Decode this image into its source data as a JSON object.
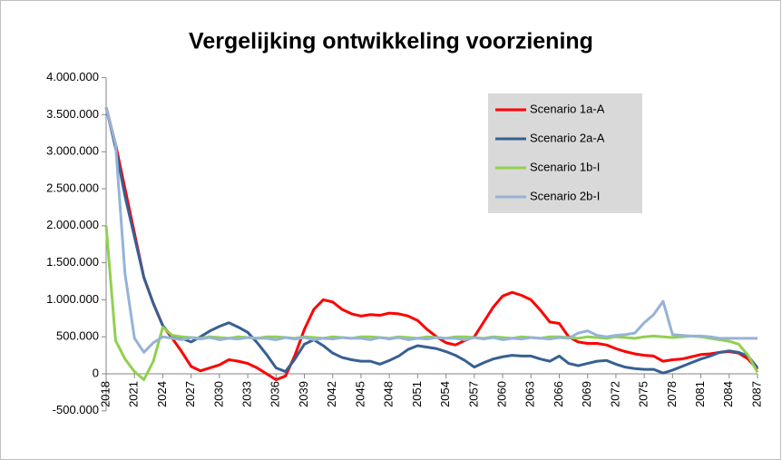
{
  "chart_data": {
    "type": "line",
    "title": "Vergelijking ontwikkeling voorziening",
    "categories": [
      "2018",
      null,
      null,
      "2021",
      null,
      null,
      "2024",
      null,
      null,
      "2027",
      null,
      null,
      "2030",
      null,
      null,
      "2033",
      null,
      null,
      "2036",
      null,
      null,
      "2039",
      null,
      null,
      "2042",
      null,
      null,
      "2045",
      null,
      null,
      "2048",
      null,
      null,
      "2051",
      null,
      null,
      "2054",
      null,
      null,
      "2057",
      null,
      null,
      "2060",
      null,
      null,
      "2063",
      null,
      null,
      "2066",
      null,
      null,
      "2069",
      null,
      null,
      "2072",
      null,
      null,
      "2075",
      null,
      null,
      "2078",
      null,
      null,
      "2081",
      null,
      null,
      "2084",
      null,
      null,
      "2087"
    ],
    "series": [
      {
        "name": "Scenario 1a-A",
        "color": "#ff0000",
        "values": [
          3600000,
          3100000,
          2500000,
          1900000,
          1300000,
          950000,
          650000,
          480000,
          300000,
          100000,
          40000,
          80000,
          120000,
          190000,
          170000,
          140000,
          80000,
          0,
          -80000,
          -30000,
          250000,
          600000,
          870000,
          1000000,
          970000,
          870000,
          810000,
          780000,
          800000,
          790000,
          820000,
          810000,
          780000,
          720000,
          600000,
          500000,
          420000,
          390000,
          450000,
          500000,
          700000,
          900000,
          1050000,
          1100000,
          1060000,
          1000000,
          860000,
          700000,
          680000,
          500000,
          430000,
          410000,
          410000,
          390000,
          340000,
          300000,
          270000,
          250000,
          240000,
          170000,
          190000,
          200000,
          230000,
          260000,
          270000,
          290000,
          300000,
          280000,
          200000,
          60000
        ]
      },
      {
        "name": "Scenario 2a-A",
        "color": "#376092",
        "values": [
          3600000,
          3050000,
          2400000,
          1850000,
          1300000,
          950000,
          650000,
          500000,
          480000,
          430000,
          500000,
          580000,
          640000,
          690000,
          630000,
          560000,
          420000,
          260000,
          80000,
          30000,
          200000,
          400000,
          460000,
          380000,
          280000,
          220000,
          190000,
          170000,
          170000,
          130000,
          180000,
          240000,
          330000,
          380000,
          360000,
          340000,
          300000,
          250000,
          180000,
          90000,
          150000,
          200000,
          230000,
          250000,
          240000,
          240000,
          200000,
          170000,
          240000,
          140000,
          110000,
          140000,
          170000,
          180000,
          130000,
          90000,
          70000,
          60000,
          60000,
          10000,
          50000,
          100000,
          150000,
          200000,
          240000,
          290000,
          310000,
          290000,
          240000,
          80000
        ]
      },
      {
        "name": "Scenario 1b-I",
        "color": "#92d050",
        "values": [
          2000000,
          450000,
          200000,
          30000,
          -80000,
          170000,
          630000,
          520000,
          500000,
          490000,
          480000,
          500000,
          490000,
          480000,
          500000,
          490000,
          480000,
          500000,
          500000,
          490000,
          480000,
          500000,
          490000,
          480000,
          500000,
          490000,
          480000,
          500000,
          500000,
          490000,
          480000,
          500000,
          490000,
          480000,
          500000,
          490000,
          480000,
          500000,
          500000,
          490000,
          480000,
          500000,
          490000,
          480000,
          500000,
          490000,
          480000,
          500000,
          500000,
          490000,
          480000,
          500000,
          490000,
          480000,
          500000,
          490000,
          480000,
          500000,
          510000,
          500000,
          490000,
          500000,
          510000,
          500000,
          480000,
          460000,
          440000,
          400000,
          250000,
          20000
        ]
      },
      {
        "name": "Scenario 2b-I",
        "color": "#95b3d7",
        "values": [
          3600000,
          3100000,
          1350000,
          480000,
          290000,
          420000,
          500000,
          480000,
          460000,
          490000,
          470000,
          490000,
          460000,
          480000,
          470000,
          490000,
          480000,
          480000,
          460000,
          490000,
          470000,
          490000,
          460000,
          480000,
          470000,
          490000,
          480000,
          480000,
          460000,
          490000,
          470000,
          490000,
          460000,
          480000,
          470000,
          490000,
          480000,
          480000,
          460000,
          490000,
          470000,
          490000,
          460000,
          480000,
          470000,
          490000,
          480000,
          470000,
          490000,
          480000,
          550000,
          580000,
          520000,
          500000,
          520000,
          530000,
          550000,
          690000,
          800000,
          980000,
          530000,
          520000,
          510000,
          510000,
          500000,
          480000,
          480000,
          480000,
          480000,
          480000
        ]
      }
    ],
    "ylim": [
      -500000,
      4000000
    ],
    "yticks": [
      {
        "value": -500000,
        "label": "-500.000"
      },
      0,
      {
        "value": 500000,
        "label": "500.000"
      },
      {
        "value": 1000000,
        "label": "1.000.000"
      },
      {
        "value": 1500000,
        "label": "1.500.000"
      },
      {
        "value": 2000000,
        "label": "2.000.000"
      },
      {
        "value": 2500000,
        "label": "2.500.000"
      },
      {
        "value": 3000000,
        "label": "3.000.000"
      },
      {
        "value": 3500000,
        "label": "3.500.000"
      },
      {
        "value": 4000000,
        "label": "4.000.000"
      }
    ]
  }
}
